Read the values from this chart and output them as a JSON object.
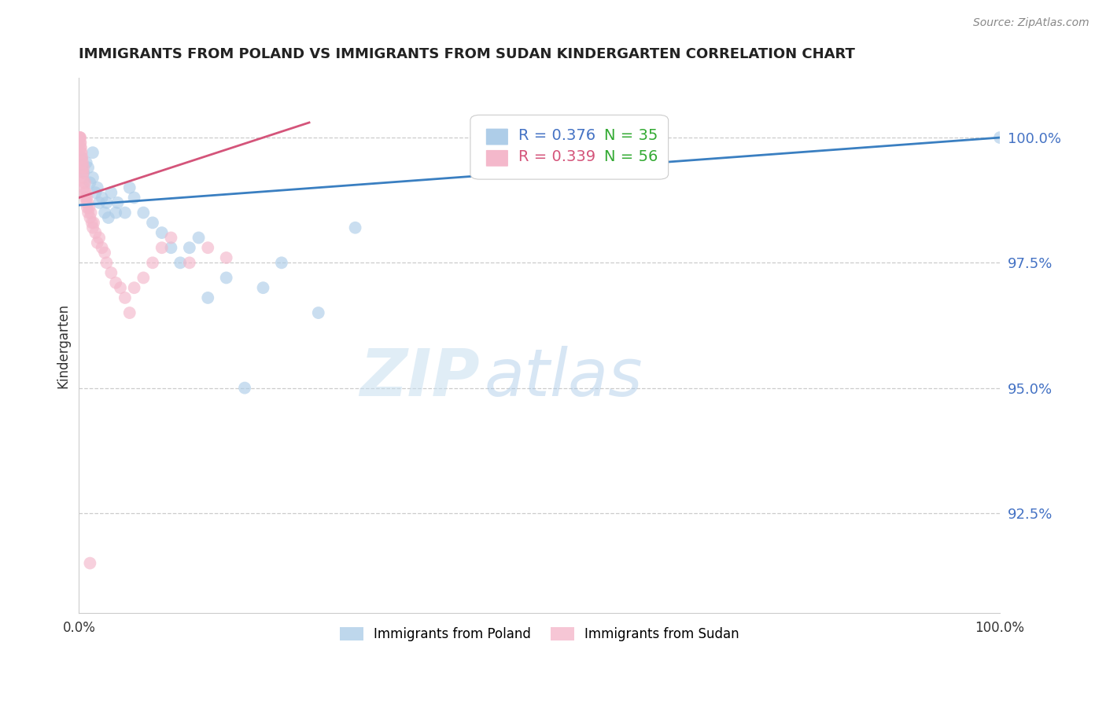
{
  "title": "IMMIGRANTS FROM POLAND VS IMMIGRANTS FROM SUDAN KINDERGARTEN CORRELATION CHART",
  "source": "Source: ZipAtlas.com",
  "ylabel": "Kindergarten",
  "y_tick_labels": [
    "92.5%",
    "95.0%",
    "97.5%",
    "100.0%"
  ],
  "y_tick_values": [
    92.5,
    95.0,
    97.5,
    100.0
  ],
  "x_range": [
    0.0,
    100.0
  ],
  "y_range": [
    90.5,
    101.2
  ],
  "legend_poland_r": "R = 0.376",
  "legend_poland_n": "N = 35",
  "legend_sudan_r": "R = 0.339",
  "legend_sudan_n": "N = 56",
  "legend_label_poland": "Immigrants from Poland",
  "legend_label_sudan": "Immigrants from Sudan",
  "color_poland": "#aecde8",
  "color_sudan": "#f4b8cb",
  "color_trend_poland": "#3a7fc1",
  "color_trend_sudan": "#d4547a",
  "color_ytick": "#4472c4",
  "color_legend_r_poland": "#4472c4",
  "color_legend_r_sudan": "#d4547a",
  "color_legend_n": "#33aa33",
  "poland_x": [
    0.3,
    0.5,
    0.8,
    1.0,
    1.2,
    1.5,
    1.5,
    1.8,
    2.0,
    2.2,
    2.5,
    2.8,
    3.0,
    3.2,
    3.5,
    4.0,
    4.2,
    5.0,
    5.5,
    6.0,
    7.0,
    8.0,
    9.0,
    10.0,
    11.0,
    12.0,
    13.0,
    14.0,
    16.0,
    18.0,
    20.0,
    22.0,
    26.0,
    30.0,
    100.0
  ],
  "poland_y": [
    99.6,
    99.3,
    99.5,
    99.4,
    99.1,
    99.7,
    99.2,
    98.9,
    99.0,
    98.7,
    98.8,
    98.5,
    98.7,
    98.4,
    98.9,
    98.5,
    98.7,
    98.5,
    99.0,
    98.8,
    98.5,
    98.3,
    98.1,
    97.8,
    97.5,
    97.8,
    98.0,
    96.8,
    97.2,
    95.0,
    97.0,
    97.5,
    96.5,
    98.2,
    100.0
  ],
  "sudan_x": [
    0.05,
    0.08,
    0.1,
    0.12,
    0.15,
    0.15,
    0.18,
    0.2,
    0.22,
    0.25,
    0.28,
    0.3,
    0.3,
    0.35,
    0.38,
    0.4,
    0.42,
    0.45,
    0.5,
    0.5,
    0.55,
    0.6,
    0.65,
    0.7,
    0.75,
    0.8,
    0.85,
    0.9,
    0.95,
    1.0,
    1.1,
    1.2,
    1.3,
    1.4,
    1.5,
    1.6,
    1.8,
    2.0,
    2.2,
    2.5,
    2.8,
    3.0,
    3.5,
    4.0,
    4.5,
    5.0,
    5.5,
    6.0,
    7.0,
    8.0,
    9.0,
    10.0,
    12.0,
    14.0,
    16.0,
    1.2
  ],
  "sudan_y": [
    100.0,
    100.0,
    100.0,
    99.9,
    100.0,
    99.8,
    99.9,
    99.7,
    99.8,
    99.6,
    99.7,
    99.5,
    99.4,
    99.6,
    99.3,
    99.5,
    99.2,
    99.3,
    99.4,
    99.1,
    99.0,
    98.9,
    99.1,
    98.8,
    98.9,
    98.7,
    98.8,
    98.6,
    98.7,
    98.5,
    98.6,
    98.4,
    98.5,
    98.3,
    98.2,
    98.3,
    98.1,
    97.9,
    98.0,
    97.8,
    97.7,
    97.5,
    97.3,
    97.1,
    97.0,
    96.8,
    96.5,
    97.0,
    97.2,
    97.5,
    97.8,
    98.0,
    97.5,
    97.8,
    97.6,
    91.5
  ],
  "trend_poland_x0": 0.0,
  "trend_poland_y0": 98.65,
  "trend_poland_x1": 100.0,
  "trend_poland_y1": 100.0,
  "trend_sudan_x0": 0.0,
  "trend_sudan_y0": 98.8,
  "trend_sudan_x1": 25.0,
  "trend_sudan_y1": 100.3,
  "watermark_zip": "ZIP",
  "watermark_atlas": "atlas",
  "background_color": "#ffffff",
  "grid_color": "#cccccc",
  "grid_style": "--",
  "x_tick_positions": [
    0,
    100
  ],
  "x_tick_labels": [
    "0.0%",
    "100.0%"
  ]
}
